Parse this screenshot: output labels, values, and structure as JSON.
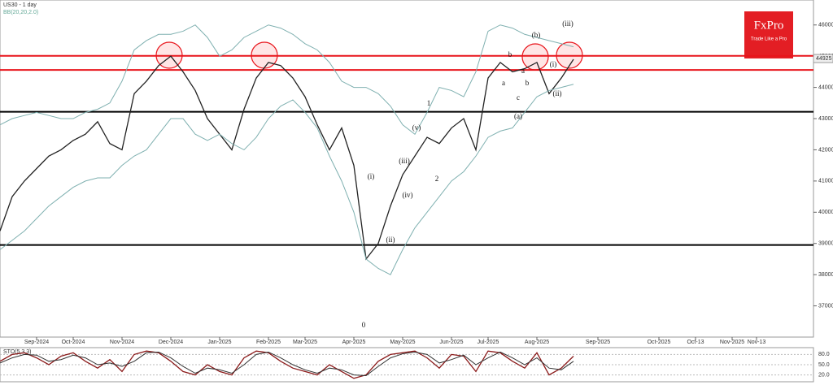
{
  "chart_data": [
    {
      "type": "line",
      "title": "US30 - 1 day",
      "subtitle": "BB(20,20,2.0)",
      "categories": [
        null,
        null,
        null,
        "Sep-2024",
        null,
        null,
        "Oct-2024",
        null,
        null,
        null,
        "Nov-2024",
        null,
        null,
        null,
        "Dec-2024",
        null,
        null,
        null,
        "Jan-2025",
        null,
        null,
        null,
        "Feb-2025",
        null,
        null,
        "Mar-2025",
        null,
        null,
        null,
        "Apr-2025",
        null,
        null,
        null,
        "May-2025",
        null,
        null,
        null,
        "Jun-2025",
        null,
        null,
        "Jul-2025",
        null,
        null,
        null,
        "Aug-2025",
        null,
        null,
        null,
        null,
        "Sep-2025",
        null,
        null,
        null,
        null,
        "Oct-2025",
        null,
        null,
        "Oct-13",
        null,
        null,
        "Nov-2025",
        null,
        "Nov-13",
        null,
        null,
        null,
        null
      ],
      "series": [
        {
          "name": "US30",
          "color": "#222222",
          "values": [
            39400,
            40500,
            41000,
            41400,
            41800,
            42000,
            42300,
            42500,
            42900,
            42200,
            42000,
            43800,
            44200,
            44700,
            45000,
            44500,
            43900,
            43000,
            42500,
            42000,
            43300,
            44300,
            44800,
            44700,
            44300,
            43700,
            42800,
            42000,
            42700,
            41500,
            38500,
            39000,
            40200,
            41200,
            41800,
            42400,
            42200,
            42700,
            43000,
            42000,
            44300,
            44800,
            44500,
            44600,
            44800,
            43800,
            44300,
            44900,
            null,
            null,
            null,
            null,
            null,
            null,
            null,
            null,
            null,
            null,
            null,
            null,
            null,
            null,
            null,
            null,
            null,
            null,
            null
          ]
        },
        {
          "name": "BB upper",
          "color": "#7fb0b0",
          "values": [
            42800,
            43000,
            43100,
            43200,
            43100,
            43000,
            43000,
            43200,
            43300,
            43500,
            44200,
            45200,
            45500,
            45700,
            45700,
            45800,
            46000,
            45600,
            45000,
            45200,
            45600,
            45800,
            46000,
            45900,
            45700,
            45400,
            45200,
            44800,
            44200,
            44000,
            44000,
            43800,
            43400,
            42800,
            42500,
            43200,
            44000,
            43900,
            43700,
            44500,
            45800,
            46000,
            45900,
            45700,
            45600,
            45500,
            45400,
            45300,
            null,
            null,
            null,
            null,
            null,
            null,
            null,
            null,
            null,
            null,
            null,
            null,
            null,
            null,
            null,
            null,
            null,
            null,
            null
          ]
        },
        {
          "name": "BB lower",
          "color": "#7fb0b0",
          "values": [
            38800,
            39100,
            39400,
            39800,
            40200,
            40500,
            40800,
            41000,
            41100,
            41100,
            41500,
            41800,
            42000,
            42500,
            43000,
            43000,
            42500,
            42300,
            42500,
            42200,
            42000,
            42400,
            43000,
            43400,
            43600,
            43200,
            42700,
            41800,
            41000,
            40000,
            38500,
            38200,
            38000,
            38800,
            39500,
            40000,
            40500,
            41000,
            41300,
            41800,
            42400,
            42600,
            42700,
            43200,
            43700,
            43900,
            44000,
            44100,
            null,
            null,
            null,
            null,
            null,
            null,
            null,
            null,
            null,
            null,
            null,
            null,
            null,
            null,
            null,
            null,
            null,
            null,
            null
          ]
        }
      ],
      "ylim": [
        36000,
        46800
      ],
      "yticks": [
        37000,
        38000,
        39000,
        40000,
        41000,
        42000,
        43000,
        44000,
        45000,
        46000
      ],
      "levels": [
        {
          "value": 45010,
          "color": "#e8141b"
        },
        {
          "value": 44560,
          "color": "#e8141b"
        },
        {
          "value": 43220,
          "color": "#000000"
        },
        {
          "value": 38950,
          "color": "#000000"
        }
      ],
      "last_price": 44925,
      "annotations": [
        "0",
        "1",
        "2",
        "(i)",
        "(ii)",
        "(iii)",
        "(iv)",
        "(v)",
        "(a)",
        "(b)",
        "(iii)",
        "(i)",
        "(ii)",
        "a",
        "b",
        "c",
        "a",
        "b"
      ]
    },
    {
      "type": "line",
      "title": "STO(5,3,3)",
      "series": [
        {
          "name": "%K",
          "color": "#8b1a1a",
          "values": [
            60,
            80,
            85,
            70,
            50,
            75,
            85,
            60,
            40,
            65,
            30,
            80,
            90,
            85,
            60,
            30,
            20,
            50,
            30,
            20,
            70,
            90,
            85,
            60,
            40,
            30,
            20,
            50,
            30,
            10,
            20,
            60,
            80,
            85,
            90,
            70,
            40,
            80,
            75,
            30,
            90,
            85,
            60,
            40,
            85,
            20,
            40,
            75,
            null,
            null,
            null,
            null,
            null,
            null,
            null,
            null,
            null,
            null,
            null,
            null,
            null,
            null,
            null,
            null,
            null,
            null,
            null
          ]
        },
        {
          "name": "%D",
          "color": "#333333",
          "values": [
            55,
            70,
            80,
            78,
            60,
            65,
            78,
            70,
            50,
            55,
            45,
            60,
            85,
            87,
            70,
            45,
            25,
            40,
            35,
            25,
            50,
            80,
            87,
            70,
            50,
            35,
            25,
            40,
            35,
            20,
            18,
            45,
            70,
            82,
            87,
            80,
            55,
            65,
            78,
            50,
            70,
            87,
            70,
            50,
            70,
            40,
            35,
            60,
            null,
            null,
            null,
            null,
            null,
            null,
            null,
            null,
            null,
            null,
            null,
            null,
            null,
            null,
            null,
            null,
            null,
            null,
            null
          ]
        }
      ],
      "ylim": [
        0,
        100
      ],
      "yticks": [
        {
          "value": 80,
          "label": "80.0"
        },
        {
          "value": 50,
          "label": "50.0"
        },
        {
          "value": 20,
          "label": "20.0"
        }
      ]
    }
  ],
  "logo": {
    "name": "FxPro",
    "tagline": "Trade Like a Pro"
  }
}
